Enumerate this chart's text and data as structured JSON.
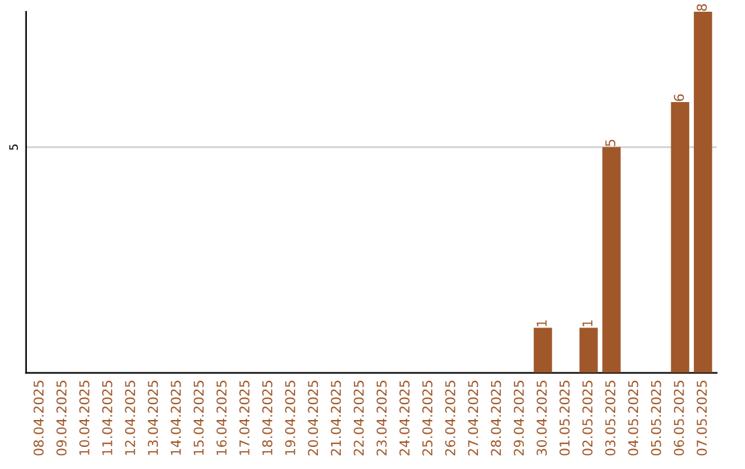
{
  "chart_data": {
    "type": "bar",
    "categories": [
      "08.04.2025",
      "09.04.2025",
      "10.04.2025",
      "11.04.2025",
      "12.04.2025",
      "13.04.2025",
      "14.04.2025",
      "15.04.2025",
      "16.04.2025",
      "17.04.2025",
      "18.04.2025",
      "19.04.2025",
      "20.04.2025",
      "21.04.2025",
      "22.04.2025",
      "23.04.2025",
      "24.04.2025",
      "25.04.2025",
      "26.04.2025",
      "27.04.2025",
      "28.04.2025",
      "29.04.2025",
      "30.04.2025",
      "01.05.2025",
      "02.05.2025",
      "03.05.2025",
      "04.05.2025",
      "05.05.2025",
      "06.05.2025",
      "07.05.2025"
    ],
    "values": [
      null,
      null,
      null,
      null,
      null,
      null,
      null,
      null,
      null,
      null,
      null,
      null,
      null,
      null,
      null,
      null,
      null,
      null,
      null,
      null,
      null,
      null,
      1,
      null,
      1,
      5,
      null,
      null,
      6,
      8
    ],
    "data_labels": true,
    "color": "#a0582a",
    "ref_lines": [
      {
        "axis": "y",
        "value": 5,
        "label": "5",
        "color": "#cccccc"
      }
    ]
  }
}
